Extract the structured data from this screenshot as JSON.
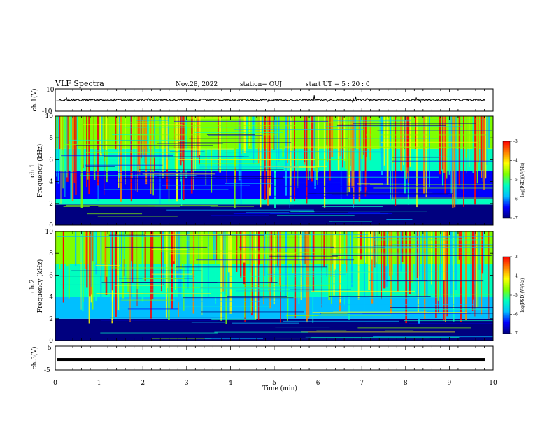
{
  "header": {
    "title": "VLF Spectra",
    "date": "Nov.28, 2022",
    "station": "station= OUJ",
    "start": "start  UT =  5 : 20 : 0"
  },
  "chart_data": [
    {
      "type": "line",
      "panel": "ch1-waveform",
      "ylabel": "ch.1(V)",
      "ylim": [
        -10,
        10
      ],
      "yticks": [
        "10",
        "-10"
      ],
      "baseline": 0
    },
    {
      "type": "heatmap",
      "panel": "ch1-spectrogram",
      "ylabel": "ch.1\nFrequency (kHz)",
      "ylim": [
        0,
        10
      ],
      "yticks": [
        "0",
        "2",
        "4",
        "6",
        "8",
        "10"
      ],
      "colorbar": {
        "label": "log(PSD)(V²/Hz)",
        "ticks": [
          "-3",
          "-4",
          "-5",
          "-6",
          "-7"
        ],
        "range": [
          -7,
          -3
        ]
      },
      "bands": [
        {
          "from": 0.0,
          "to": 0.5,
          "level": -7.0
        },
        {
          "from": 0.5,
          "to": 1.9,
          "level": -6.6
        },
        {
          "from": 1.9,
          "to": 2.4,
          "level": -5.0
        },
        {
          "from": 2.4,
          "to": 5.0,
          "level": -6.0
        },
        {
          "from": 5.0,
          "to": 7.0,
          "level": -5.3
        },
        {
          "from": 7.0,
          "to": 10.0,
          "level": -4.6
        }
      ]
    },
    {
      "type": "heatmap",
      "panel": "ch2-spectrogram",
      "ylabel": "ch.2\nFrequency (kHz)",
      "ylim": [
        0,
        10
      ],
      "yticks": [
        "0",
        "2",
        "4",
        "6",
        "8",
        "10"
      ],
      "colorbar": {
        "label": "log(PSD)(V²/Hz)",
        "ticks": [
          "-3",
          "-4",
          "-5",
          "-6",
          "-7"
        ],
        "range": [
          -7,
          -3
        ]
      },
      "bands": [
        {
          "from": 0.0,
          "to": 2.0,
          "level": -6.6
        },
        {
          "from": 2.0,
          "to": 4.0,
          "level": -5.6
        },
        {
          "from": 4.0,
          "to": 7.0,
          "level": -5.0
        },
        {
          "from": 7.0,
          "to": 10.0,
          "level": -4.5
        }
      ]
    },
    {
      "type": "line",
      "panel": "ch3-waveform",
      "ylabel": "ch.3(V)",
      "ylim": [
        -5,
        5
      ],
      "yticks": [
        "5",
        "-5"
      ],
      "baseline": -0.6
    }
  ],
  "xaxis": {
    "label": "Time (min)",
    "ticks": [
      "0",
      "1",
      "2",
      "3",
      "4",
      "5",
      "6",
      "7",
      "8",
      "9",
      "10"
    ],
    "range": [
      0,
      10
    ]
  },
  "colors": {
    "colormap": [
      "#00007f",
      "#0000ff",
      "#00bfff",
      "#00ffbf",
      "#7fff00",
      "#ffff00",
      "#ff7f00",
      "#ff0000",
      "#ffffff"
    ],
    "trace": "#000000"
  }
}
